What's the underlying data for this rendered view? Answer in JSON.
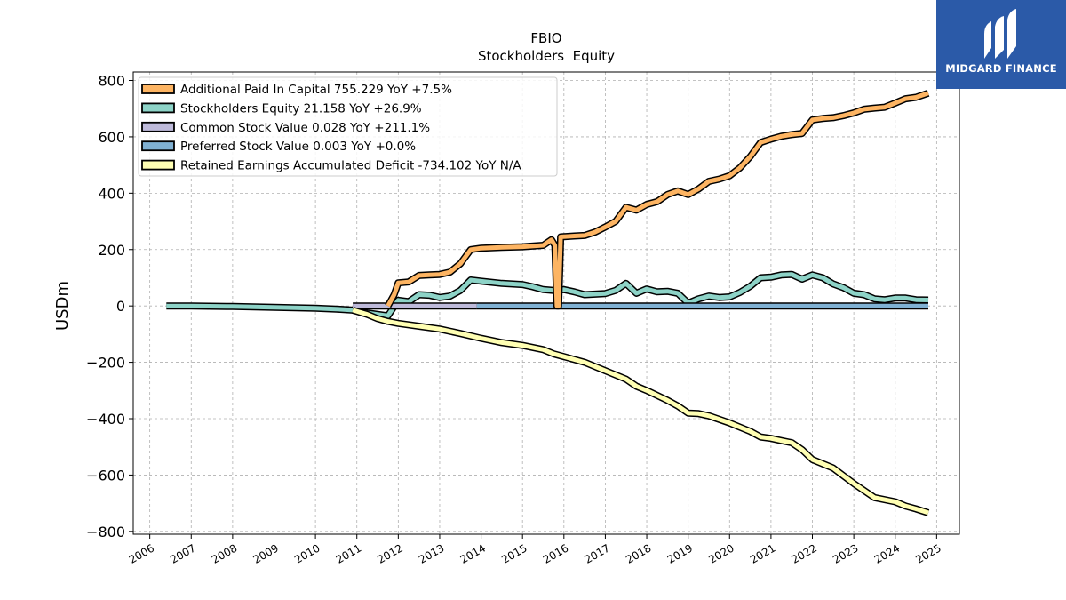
{
  "brand": {
    "name": "MIDGARD FINANCE",
    "logo_bg": "#2b5aa8"
  },
  "chart_data": {
    "type": "line",
    "title": "FBIO",
    "subtitle": "Stockholders  Equity",
    "ylabel": "USDm",
    "xlabel": "",
    "xlim": [
      2005.6,
      2025.55
    ],
    "ylim": [
      -810,
      830
    ],
    "x_ticks": [
      2006,
      2007,
      2008,
      2009,
      2010,
      2011,
      2012,
      2013,
      2014,
      2015,
      2016,
      2017,
      2018,
      2019,
      2020,
      2021,
      2022,
      2023,
      2024,
      2025
    ],
    "y_ticks": [
      800,
      600,
      400,
      200,
      0,
      -200,
      -400,
      -600,
      -800
    ],
    "y_tick_labels": [
      "800",
      "600",
      "400",
      "200",
      "0",
      "−200",
      "−400",
      "−600",
      "−800"
    ],
    "grid": true,
    "legend_position": "top-left",
    "series": [
      {
        "name": "Additional Paid In Capital  755.229 YoY +7.5%",
        "color": "#fdb462",
        "points": [
          [
            2011.75,
            0
          ],
          [
            2011.9,
            40
          ],
          [
            2012.0,
            82
          ],
          [
            2012.25,
            85
          ],
          [
            2012.5,
            108
          ],
          [
            2012.75,
            110
          ],
          [
            2013.0,
            112
          ],
          [
            2013.25,
            120
          ],
          [
            2013.5,
            150
          ],
          [
            2013.75,
            200
          ],
          [
            2014.0,
            205
          ],
          [
            2014.5,
            208
          ],
          [
            2015.0,
            210
          ],
          [
            2015.5,
            215
          ],
          [
            2015.7,
            235
          ],
          [
            2015.78,
            215
          ],
          [
            2015.83,
            0
          ],
          [
            2015.87,
            0
          ],
          [
            2015.92,
            245
          ],
          [
            2016.25,
            248
          ],
          [
            2016.5,
            250
          ],
          [
            2016.75,
            262
          ],
          [
            2017.0,
            280
          ],
          [
            2017.25,
            300
          ],
          [
            2017.5,
            350
          ],
          [
            2017.75,
            340
          ],
          [
            2018.0,
            360
          ],
          [
            2018.25,
            370
          ],
          [
            2018.5,
            395
          ],
          [
            2018.75,
            408
          ],
          [
            2019.0,
            395
          ],
          [
            2019.25,
            415
          ],
          [
            2019.5,
            442
          ],
          [
            2019.75,
            450
          ],
          [
            2020.0,
            462
          ],
          [
            2020.25,
            490
          ],
          [
            2020.5,
            530
          ],
          [
            2020.75,
            580
          ],
          [
            2021.0,
            592
          ],
          [
            2021.25,
            602
          ],
          [
            2021.5,
            608
          ],
          [
            2021.75,
            612
          ],
          [
            2022.0,
            660
          ],
          [
            2022.25,
            665
          ],
          [
            2022.5,
            668
          ],
          [
            2022.75,
            675
          ],
          [
            2023.0,
            685
          ],
          [
            2023.25,
            698
          ],
          [
            2023.5,
            702
          ],
          [
            2023.75,
            705
          ],
          [
            2024.0,
            720
          ],
          [
            2024.25,
            735
          ],
          [
            2024.5,
            740
          ],
          [
            2024.8,
            755
          ]
        ]
      },
      {
        "name": "Stockholders Equity  21.158 YoY +26.9%",
        "color": "#8dd3c7",
        "points": [
          [
            2006.4,
            0
          ],
          [
            2007.0,
            0
          ],
          [
            2008.0,
            -2
          ],
          [
            2009.0,
            -5
          ],
          [
            2010.0,
            -8
          ],
          [
            2010.5,
            -11
          ],
          [
            2010.9,
            -15
          ],
          [
            2011.25,
            -25
          ],
          [
            2011.5,
            -30
          ],
          [
            2011.75,
            -35
          ],
          [
            2012.0,
            20
          ],
          [
            2012.25,
            15
          ],
          [
            2012.5,
            40
          ],
          [
            2012.75,
            38
          ],
          [
            2013.0,
            30
          ],
          [
            2013.25,
            35
          ],
          [
            2013.5,
            55
          ],
          [
            2013.75,
            92
          ],
          [
            2014.0,
            88
          ],
          [
            2014.5,
            80
          ],
          [
            2015.0,
            76
          ],
          [
            2015.25,
            68
          ],
          [
            2015.5,
            58
          ],
          [
            2015.75,
            55
          ],
          [
            2016.0,
            58
          ],
          [
            2016.25,
            50
          ],
          [
            2016.5,
            40
          ],
          [
            2016.75,
            42
          ],
          [
            2017.0,
            44
          ],
          [
            2017.25,
            55
          ],
          [
            2017.5,
            80
          ],
          [
            2017.75,
            45
          ],
          [
            2018.0,
            60
          ],
          [
            2018.25,
            50
          ],
          [
            2018.5,
            52
          ],
          [
            2018.75,
            45
          ],
          [
            2019.0,
            10
          ],
          [
            2019.25,
            25
          ],
          [
            2019.5,
            35
          ],
          [
            2019.75,
            30
          ],
          [
            2020.0,
            32
          ],
          [
            2020.25,
            48
          ],
          [
            2020.5,
            70
          ],
          [
            2020.75,
            100
          ],
          [
            2021.0,
            102
          ],
          [
            2021.25,
            110
          ],
          [
            2021.5,
            112
          ],
          [
            2021.75,
            95
          ],
          [
            2022.0,
            110
          ],
          [
            2022.25,
            100
          ],
          [
            2022.5,
            78
          ],
          [
            2022.75,
            65
          ],
          [
            2023.0,
            45
          ],
          [
            2023.25,
            40
          ],
          [
            2023.5,
            25
          ],
          [
            2023.75,
            22
          ],
          [
            2024.0,
            28
          ],
          [
            2024.25,
            28
          ],
          [
            2024.5,
            22
          ],
          [
            2024.8,
            21
          ]
        ]
      },
      {
        "name": "Common Stock Value  0.028 YoY +211.1%",
        "color": "#bebada",
        "points": [
          [
            2010.9,
            0
          ],
          [
            2013.9,
            0
          ]
        ]
      },
      {
        "name": "Preferred Stock Value  0.003 YoY +0.0%",
        "color": "#80b1d3",
        "points": [
          [
            2013.9,
            0
          ],
          [
            2024.8,
            0
          ]
        ]
      },
      {
        "name": "Retained Earnings Accumulated Deficit  -734.102 YoY N/A",
        "color": "#ffffb3",
        "points": [
          [
            2010.9,
            -15
          ],
          [
            2011.25,
            -30
          ],
          [
            2011.5,
            -45
          ],
          [
            2011.75,
            -55
          ],
          [
            2012.0,
            -62
          ],
          [
            2012.5,
            -72
          ],
          [
            2013.0,
            -82
          ],
          [
            2013.5,
            -98
          ],
          [
            2014.0,
            -115
          ],
          [
            2014.5,
            -130
          ],
          [
            2015.0,
            -140
          ],
          [
            2015.5,
            -155
          ],
          [
            2015.75,
            -170
          ],
          [
            2016.0,
            -180
          ],
          [
            2016.5,
            -200
          ],
          [
            2017.0,
            -230
          ],
          [
            2017.5,
            -260
          ],
          [
            2017.75,
            -285
          ],
          [
            2018.0,
            -300
          ],
          [
            2018.5,
            -335
          ],
          [
            2018.75,
            -355
          ],
          [
            2019.0,
            -380
          ],
          [
            2019.25,
            -382
          ],
          [
            2019.5,
            -390
          ],
          [
            2020.0,
            -415
          ],
          [
            2020.5,
            -445
          ],
          [
            2020.75,
            -465
          ],
          [
            2021.0,
            -470
          ],
          [
            2021.25,
            -478
          ],
          [
            2021.5,
            -485
          ],
          [
            2021.75,
            -510
          ],
          [
            2022.0,
            -545
          ],
          [
            2022.5,
            -575
          ],
          [
            2023.0,
            -630
          ],
          [
            2023.25,
            -655
          ],
          [
            2023.5,
            -680
          ],
          [
            2024.0,
            -695
          ],
          [
            2024.25,
            -710
          ],
          [
            2024.5,
            -720
          ],
          [
            2024.8,
            -734
          ]
        ]
      }
    ]
  }
}
